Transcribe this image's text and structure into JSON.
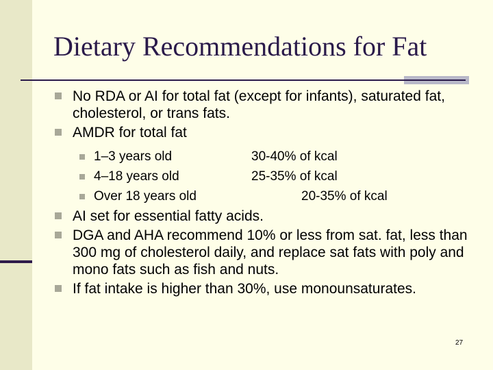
{
  "title": "Dietary Recommendations for Fat",
  "bullets": [
    "No RDA or AI for total fat (except for infants), saturated fat, cholesterol, or trans fats.",
    "AMDR for total fat",
    "AI set for essential fatty acids.",
    "DGA and AHA recommend 10% or less from sat. fat, less than 300 mg of cholesterol daily, and replace sat fats with poly and mono fats such as fish and nuts.",
    "If fat intake is higher than 30%, use monounsaturates."
  ],
  "amdr": [
    {
      "age": "1–3 years old",
      "range": "30-40% of kcal"
    },
    {
      "age": "4–18 years old",
      "range": "25-35% of kcal"
    },
    {
      "age": "Over 18 years old",
      "range": "20-35% of kcal"
    }
  ],
  "page_number": "27",
  "colors": {
    "background": "#fefee8",
    "title": "#2a1a4a",
    "bullet": "#a8a898"
  }
}
